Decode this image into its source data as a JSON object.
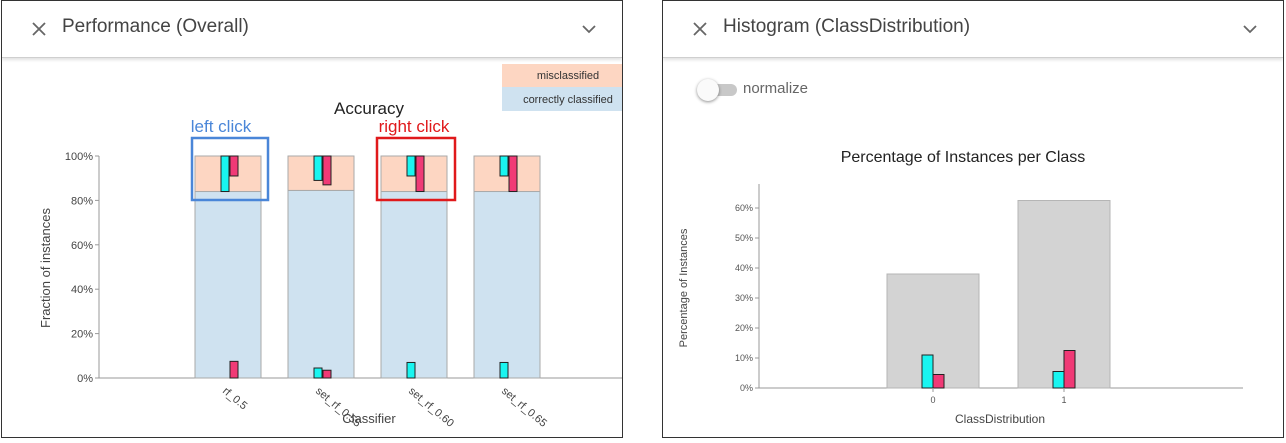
{
  "left_panel": {
    "header_title": "Performance (Overall)",
    "close_icon": "close-icon",
    "collapse_icon": "chevron-down-icon"
  },
  "right_panel": {
    "header_title": "Histogram (ClassDistribution)",
    "close_icon": "close-icon",
    "collapse_icon": "chevron-down-icon",
    "toggle": {
      "label": "normalize",
      "on": false
    }
  },
  "annotations": {
    "left_click": {
      "text": "left click",
      "color": "#4a86d8"
    },
    "right_click": {
      "text": "right click",
      "color": "#e0191b"
    }
  },
  "colors": {
    "misclassified": "#fdd6c2",
    "correctly_classified": "#cfe2f0",
    "cyan_mark": "#19f5f0",
    "pink_mark": "#f03a76",
    "histogram_bar": "#d3d3d3"
  },
  "chart_data": [
    {
      "type": "bar",
      "title": "Accuracy",
      "xlabel": "Classifier",
      "ylabel": "Fraction of instances",
      "categories": [
        "rf_0.5",
        "set_rf_0.55",
        "set_rf_0.60",
        "set_rf_0.65"
      ],
      "ylim": [
        0,
        1
      ],
      "yticks": [
        "0%",
        "20%",
        "40%",
        "60%",
        "80%",
        "100%"
      ],
      "series": [
        {
          "name": "correctly classified",
          "values": [
            0.84,
            0.845,
            0.84,
            0.84
          ]
        },
        {
          "name": "misclassified",
          "values": [
            0.16,
            0.155,
            0.16,
            0.16
          ]
        }
      ],
      "selection_marks": {
        "top": {
          "cyan": [
            [
              0.84,
              1.0
            ],
            [
              0.89,
              1.0
            ],
            [
              0.91,
              1.0
            ],
            [
              0.91,
              1.0
            ]
          ],
          "pink": [
            [
              0.91,
              1.0
            ],
            [
              0.87,
              1.0
            ],
            [
              0.84,
              1.0
            ],
            [
              0.84,
              1.0
            ]
          ]
        },
        "bottom": {
          "cyan": [
            0.0,
            0.045,
            0.07,
            0.07
          ],
          "pink": [
            0.075,
            0.035,
            0.0,
            0.0
          ]
        }
      },
      "legend": "top-right",
      "grid": false
    },
    {
      "type": "bar",
      "title": "Percentage of Instances per Class",
      "xlabel": "ClassDistribution",
      "ylabel": "Percentage of Instances",
      "categories": [
        "0",
        "1"
      ],
      "values": [
        0.38,
        0.625
      ],
      "ylim": [
        0,
        0.68
      ],
      "yticks": [
        "0%",
        "10%",
        "20%",
        "30%",
        "40%",
        "50%",
        "60%"
      ],
      "overlays": {
        "cyan": [
          0.11,
          0.055
        ],
        "pink": [
          0.045,
          0.125
        ]
      },
      "grid": false
    }
  ]
}
